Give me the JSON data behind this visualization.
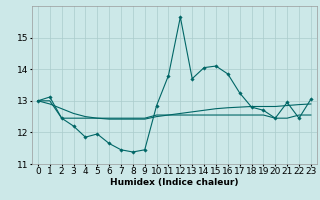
{
  "xlabel": "Humidex (Indice chaleur)",
  "background_color": "#cce8e8",
  "grid_color": "#aacccc",
  "line_color": "#006666",
  "x": [
    0,
    1,
    2,
    3,
    4,
    5,
    6,
    7,
    8,
    9,
    10,
    11,
    12,
    13,
    14,
    15,
    16,
    17,
    18,
    19,
    20,
    21,
    22,
    23
  ],
  "y_main": [
    13.0,
    13.12,
    12.45,
    12.2,
    11.85,
    11.95,
    11.65,
    11.45,
    11.38,
    11.45,
    12.85,
    13.8,
    15.65,
    13.7,
    14.05,
    14.1,
    13.85,
    13.25,
    12.8,
    12.7,
    12.45,
    12.95,
    12.45,
    13.05
  ],
  "y_line1": [
    13.0,
    13.0,
    12.45,
    12.45,
    12.45,
    12.45,
    12.45,
    12.45,
    12.45,
    12.45,
    12.55,
    12.55,
    12.55,
    12.55,
    12.55,
    12.55,
    12.55,
    12.55,
    12.55,
    12.55,
    12.45,
    12.45,
    12.55,
    12.55
  ],
  "y_line2": [
    13.0,
    12.9,
    12.75,
    12.6,
    12.5,
    12.45,
    12.42,
    12.42,
    12.42,
    12.42,
    12.5,
    12.55,
    12.6,
    12.65,
    12.7,
    12.75,
    12.78,
    12.8,
    12.82,
    12.82,
    12.82,
    12.85,
    12.88,
    12.9
  ],
  "ylim": [
    11.0,
    16.0
  ],
  "xlim": [
    -0.5,
    23.5
  ],
  "yticks": [
    11,
    12,
    13,
    14,
    15
  ],
  "xticks": [
    0,
    1,
    2,
    3,
    4,
    5,
    6,
    7,
    8,
    9,
    10,
    11,
    12,
    13,
    14,
    15,
    16,
    17,
    18,
    19,
    20,
    21,
    22,
    23
  ],
  "fontsize": 6.5,
  "lw": 0.8
}
